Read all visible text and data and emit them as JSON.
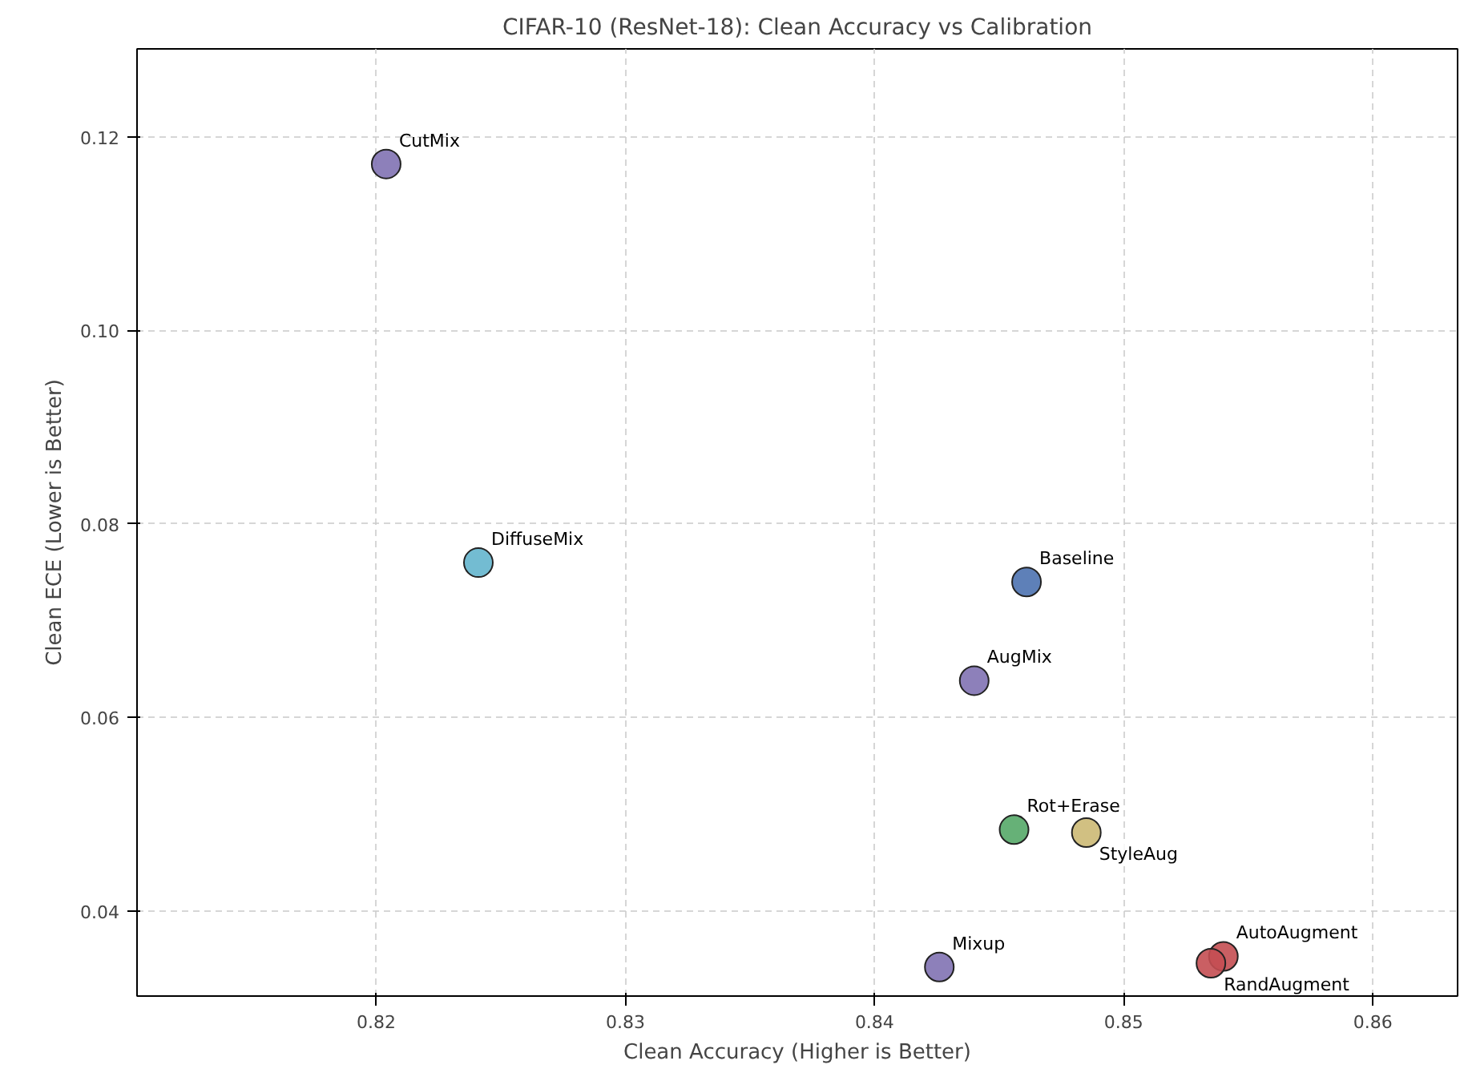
{
  "chart_data": {
    "type": "scatter",
    "title": "CIFAR-10 (ResNet-18): Clean Accuracy vs Calibration",
    "xlabel": "Clean Accuracy (Higher is Better)",
    "ylabel": "Clean ECE (Lower is Better)",
    "xlim": [
      0.8104,
      0.8634
    ],
    "ylim": [
      0.0312,
      0.1291
    ],
    "xticks": [
      0.82,
      0.83,
      0.84,
      0.85,
      0.86
    ],
    "yticks": [
      {
        "value": 0.04,
        "label": "0.04"
      },
      {
        "value": 0.06,
        "label": "0.06"
      },
      {
        "value": 0.08,
        "label": "0.08"
      },
      {
        "value": 0.1,
        "label": "0.10"
      },
      {
        "value": 0.12,
        "label": "0.12"
      }
    ],
    "grid": true,
    "marker": "circle",
    "series": [
      {
        "name": "CutMix",
        "color": "#8172b3",
        "x": [
          0.8204
        ],
        "values": [
          0.1172
        ]
      },
      {
        "name": "DiffuseMix",
        "color": "#64b5cd",
        "x": [
          0.8241
        ],
        "values": [
          0.076
        ]
      },
      {
        "name": "Baseline",
        "color": "#4c72b0",
        "x": [
          0.8461
        ],
        "values": [
          0.074
        ]
      },
      {
        "name": "AugMix",
        "color": "#8172b3",
        "x": [
          0.844
        ],
        "values": [
          0.0638
        ]
      },
      {
        "name": "Rot+Erase",
        "color": "#55a868",
        "x": [
          0.8456
        ],
        "values": [
          0.0484
        ]
      },
      {
        "name": "StyleAug",
        "color": "#ccb974",
        "x": [
          0.8485
        ],
        "values": [
          0.0481
        ]
      },
      {
        "name": "Mixup",
        "color": "#8172b3",
        "x": [
          0.8426
        ],
        "values": [
          0.0342
        ]
      },
      {
        "name": "AutoAugment",
        "color": "#c44e52",
        "x": [
          0.854
        ],
        "values": [
          0.0353
        ]
      },
      {
        "name": "RandAugment",
        "color": "#c44e52",
        "x": [
          0.8535
        ],
        "values": [
          0.0346
        ]
      }
    ]
  }
}
